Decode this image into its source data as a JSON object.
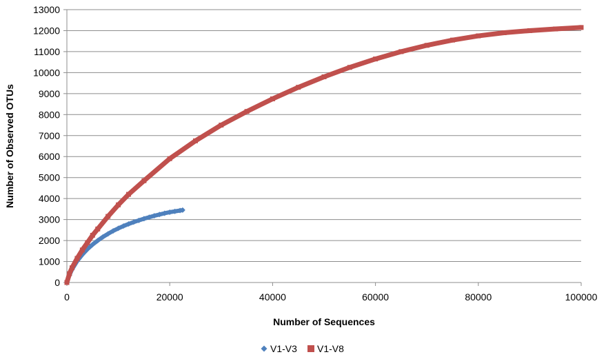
{
  "chart_data": {
    "type": "scatter",
    "title": "",
    "xlabel": "Number of Sequences",
    "ylabel": "Number of Observed OTUs",
    "xlim": [
      0,
      100000
    ],
    "ylim": [
      0,
      13000
    ],
    "x_ticks": [
      0,
      20000,
      40000,
      60000,
      80000,
      100000
    ],
    "y_ticks": [
      0,
      1000,
      2000,
      3000,
      4000,
      5000,
      6000,
      7000,
      8000,
      9000,
      10000,
      11000,
      12000,
      13000
    ],
    "grid": "horizontal",
    "legend_position": "bottom",
    "series": [
      {
        "name": "V1-V3",
        "marker": "diamond",
        "color": "#4f81bd",
        "x": [
          0,
          500,
          1000,
          2000,
          3000,
          4000,
          5000,
          6000,
          7000,
          8000,
          9000,
          10000,
          11000,
          12000,
          13000,
          14000,
          15000,
          16000,
          17000,
          18000,
          19000,
          20000,
          21000,
          22000,
          22500
        ],
        "y": [
          0,
          350,
          620,
          1020,
          1330,
          1590,
          1810,
          2000,
          2170,
          2320,
          2460,
          2580,
          2690,
          2790,
          2880,
          2960,
          3040,
          3110,
          3180,
          3240,
          3300,
          3350,
          3390,
          3430,
          3450
        ]
      },
      {
        "name": "V1-V8",
        "marker": "square",
        "color": "#c0504d",
        "x": [
          0,
          500,
          1000,
          2000,
          3000,
          4000,
          5000,
          6000,
          8000,
          10000,
          12000,
          15000,
          20000,
          25000,
          30000,
          35000,
          40000,
          45000,
          50000,
          55000,
          60000,
          65000,
          70000,
          75000,
          80000,
          85000,
          90000,
          95000,
          100000
        ],
        "y": [
          0,
          420,
          700,
          1150,
          1550,
          1900,
          2250,
          2550,
          3150,
          3700,
          4200,
          4850,
          5900,
          6750,
          7500,
          8150,
          8750,
          9300,
          9800,
          10250,
          10650,
          11000,
          11300,
          11550,
          11750,
          11900,
          12000,
          12080,
          12150
        ]
      }
    ]
  }
}
